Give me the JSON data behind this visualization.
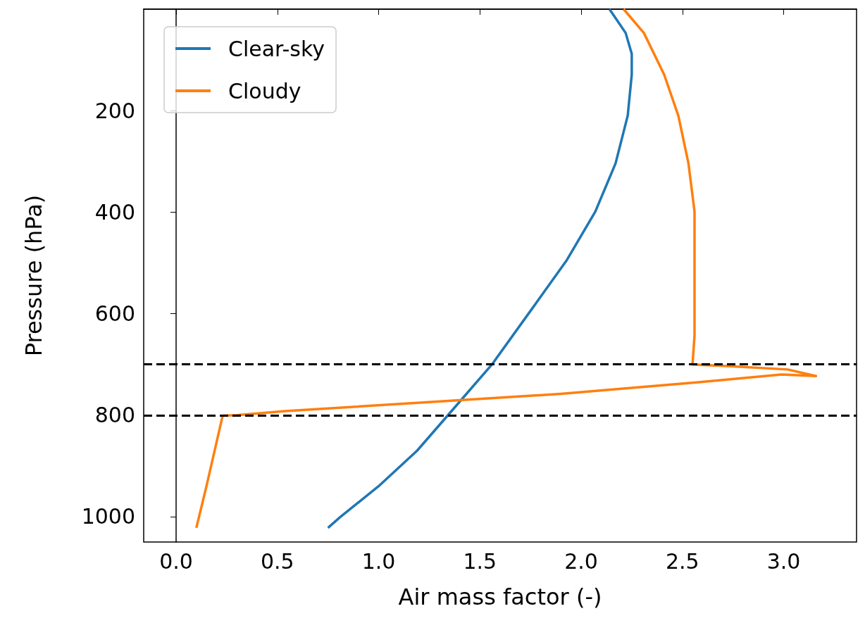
{
  "chart_data": {
    "type": "line",
    "xlabel": "Air mass factor (-)",
    "ylabel": "Pressure (hPa)",
    "xlim": [
      -0.16,
      3.36
    ],
    "ylim": [
      1050,
      0
    ],
    "xticks": [
      {
        "value": 0,
        "label": "0.0"
      },
      {
        "value": 0.5,
        "label": "0.5"
      },
      {
        "value": 1,
        "label": "1.0"
      },
      {
        "value": 1.5,
        "label": "1.5"
      },
      {
        "value": 2,
        "label": "2.0"
      },
      {
        "value": 2.5,
        "label": "2.5"
      },
      {
        "value": 3,
        "label": "3.0"
      }
    ],
    "yticks": [
      200,
      400,
      600,
      800,
      1000
    ],
    "series": [
      {
        "name": "Clear-sky",
        "color": "#1f77b4",
        "x": [
          0.75,
          0.81,
          1.0,
          1.19,
          1.36,
          1.56,
          1.76,
          1.93,
          2.07,
          2.17,
          2.23,
          2.25,
          2.25,
          2.22,
          2.14
        ],
        "values": [
          1022,
          1001,
          940,
          870,
          792,
          700,
          589,
          494,
          399,
          304,
          210,
          129,
          88,
          47,
          0
        ]
      },
      {
        "name": "Cloudy",
        "color": "#ff7f0e",
        "x": [
          0.1,
          0.15,
          0.23,
          0.3,
          0.54,
          1.22,
          1.9,
          2.58,
          2.99,
          3.16,
          3.02,
          2.75,
          2.55,
          2.56,
          2.56,
          2.56,
          2.53,
          2.48,
          2.41,
          2.31,
          2.21
        ],
        "values": [
          1022,
          940,
          801,
          800,
          792,
          775,
          758,
          735,
          720,
          723,
          710,
          704,
          700,
          643,
          534,
          399,
          304,
          210,
          129,
          47,
          0
        ]
      }
    ],
    "ref_lines": [
      {
        "axis": "y",
        "value": 700,
        "color": "#000000",
        "line_style": "dashed"
      },
      {
        "axis": "y",
        "value": 800,
        "color": "#000000",
        "line_style": "dashed"
      }
    ],
    "grid": false,
    "legend": "top left",
    "marker": "none",
    "line_style": "solid"
  }
}
